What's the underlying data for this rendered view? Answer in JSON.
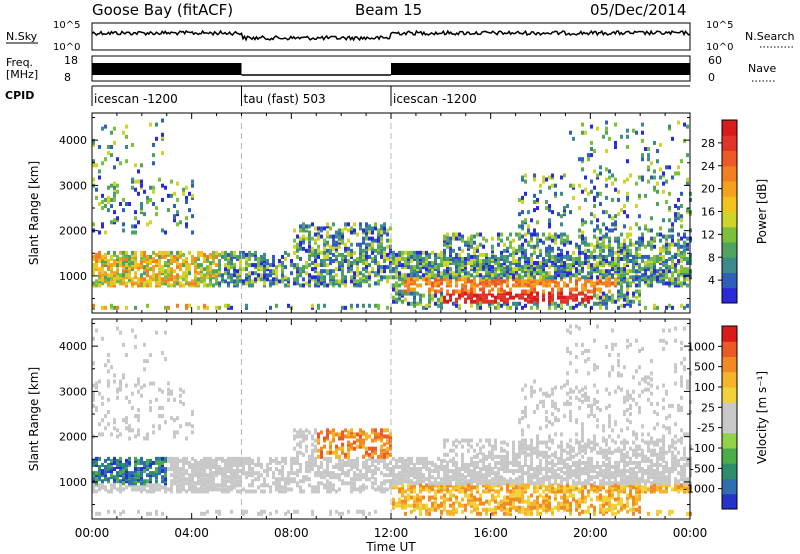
{
  "header": {
    "station": "Goose Bay (fitACF)",
    "beam": "Beam 15",
    "date": "05/Dec/2014"
  },
  "summary_panels": {
    "nsky": {
      "left_label": "N.Sky",
      "left_ticks": [
        "10^5",
        "10^0"
      ],
      "right_label": "N.Search",
      "right_ticks": [
        "10^5",
        "10^0"
      ]
    },
    "freq": {
      "left_label_1": "Freq.",
      "left_label_2": "[MHz]",
      "left_ticks": [
        "18",
        "8"
      ],
      "right_label": "Nave",
      "right_ticks": [
        "60",
        "0"
      ]
    },
    "cpid": {
      "label": "CPID",
      "segments": [
        {
          "label": "icescan -1200",
          "start_hour": 0,
          "end_hour": 6
        },
        {
          "label": "tau (fast) 503",
          "start_hour": 6,
          "end_hour": 12
        },
        {
          "label": "icescan -1200",
          "start_hour": 12,
          "end_hour": 24
        }
      ]
    }
  },
  "chart_data": [
    {
      "type": "heatmap",
      "ylabel": "Slant Range [km]",
      "xlabel": "Time UT",
      "xlim_hours": [
        0,
        24
      ],
      "ylim_km": [
        180,
        4600
      ],
      "x_tick_labels": [
        "00:00",
        "04:00",
        "08:00",
        "12:00",
        "16:00",
        "20:00",
        "00:00"
      ],
      "y_tick_labels": [
        "1000",
        "2000",
        "3000",
        "4000"
      ],
      "colorbar": {
        "label": "Power [dB]",
        "tick_labels": [
          "4",
          "8",
          "12",
          "16",
          "20",
          "24",
          "28"
        ],
        "colors": [
          "#2a2ad9",
          "#2f5fb8",
          "#3c8a8a",
          "#4fa35f",
          "#7bbf3a",
          "#cfd32a",
          "#f3c31c",
          "#f4a21e",
          "#f27f22",
          "#ec5a26",
          "#e23428",
          "#d81c1c"
        ]
      }
    },
    {
      "type": "heatmap",
      "ylabel": "Slant Range [km]",
      "xlabel": "Time UT",
      "xlim_hours": [
        0,
        24
      ],
      "ylim_km": [
        180,
        4600
      ],
      "x_tick_labels": [
        "00:00",
        "04:00",
        "08:00",
        "12:00",
        "16:00",
        "20:00",
        "00:00"
      ],
      "y_tick_labels": [
        "1000",
        "2000",
        "3000",
        "4000"
      ],
      "colorbar": {
        "label": "Velocity [m s⁻¹]",
        "tick_labels": [
          "1000",
          "500",
          "100",
          "25",
          "-25",
          "-100",
          "-500",
          "-1000"
        ],
        "colors": [
          "#2434c8",
          "#2f6fb0",
          "#2f8e6a",
          "#4dac4a",
          "#92d14a",
          "#c8c8c8",
          "#c8c8c8",
          "#f2d23a",
          "#f5b52a",
          "#f28a24",
          "#ea5a26",
          "#d81c1c"
        ]
      }
    }
  ]
}
